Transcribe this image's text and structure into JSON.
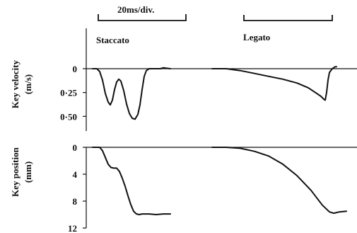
{
  "scale": {
    "label": "20ms/div."
  },
  "conditions": {
    "staccato": "Staccato",
    "legato": "Legato"
  },
  "chart_data": [
    {
      "type": "line",
      "ylabel_line1": "Key velocity",
      "ylabel_line2": "(m/s)",
      "y_ticks": [
        "0",
        "0·25",
        "0·50"
      ],
      "y_tick_values": [
        0,
        0.25,
        0.5
      ],
      "ylim": [
        0,
        0.55
      ],
      "y_inverted": true,
      "series": [
        {
          "points": [
            [
              0,
              0
            ],
            [
              3,
              0
            ],
            [
              5,
              0.03
            ],
            [
              7,
              0.12
            ],
            [
              9,
              0.26
            ],
            [
              11,
              0.35
            ],
            [
              12.5,
              0.38
            ],
            [
              14,
              0.33
            ],
            [
              15.5,
              0.22
            ],
            [
              17,
              0.14
            ],
            [
              18.5,
              0.11
            ],
            [
              20,
              0.13
            ],
            [
              22,
              0.23
            ],
            [
              24,
              0.37
            ],
            [
              26,
              0.47
            ],
            [
              28,
              0.52
            ],
            [
              30,
              0.53
            ],
            [
              32,
              0.48
            ],
            [
              33.5,
              0.38
            ],
            [
              35,
              0.22
            ],
            [
              36.5,
              0.08
            ],
            [
              38,
              0.02
            ],
            [
              40,
              0
            ],
            [
              45,
              0
            ],
            [
              48,
              0
            ],
            [
              50,
              -0.01
            ],
            [
              55,
              0
            ]
          ]
        },
        {
          "points": [
            [
              0,
              0
            ],
            [
              10,
              0
            ],
            [
              20,
              0.02
            ],
            [
              30,
              0.05
            ],
            [
              40,
              0.08
            ],
            [
              50,
              0.11
            ],
            [
              60,
              0.15
            ],
            [
              68,
              0.2
            ],
            [
              73,
              0.25
            ],
            [
              77,
              0.29
            ],
            [
              79,
              0.32
            ],
            [
              80,
              0.33
            ],
            [
              81,
              0.25
            ],
            [
              82,
              0.12
            ],
            [
              83,
              0.04
            ],
            [
              85,
              0
            ],
            [
              87,
              -0.02
            ],
            [
              88,
              -0.02
            ]
          ]
        }
      ]
    },
    {
      "type": "line",
      "ylabel_line1": "Key position",
      "ylabel_line2": "(mm)",
      "y_ticks": [
        "0",
        "4",
        "8",
        "12"
      ],
      "y_tick_values": [
        0,
        4,
        8,
        12
      ],
      "ylim": [
        0,
        12
      ],
      "y_inverted": true,
      "series": [
        {
          "points": [
            [
              0,
              0
            ],
            [
              5,
              0
            ],
            [
              7,
              0.5
            ],
            [
              9,
              1.5
            ],
            [
              11,
              2.5
            ],
            [
              13,
              3.0
            ],
            [
              15,
              3.1
            ],
            [
              17,
              3.1
            ],
            [
              19,
              3.6
            ],
            [
              21,
              4.6
            ],
            [
              23,
              5.8
            ],
            [
              25,
              7.2
            ],
            [
              27,
              8.5
            ],
            [
              29,
              9.5
            ],
            [
              31,
              9.9
            ],
            [
              33,
              10
            ],
            [
              35,
              9.9
            ],
            [
              40,
              9.9
            ],
            [
              45,
              10
            ],
            [
              50,
              9.9
            ],
            [
              55,
              9.9
            ]
          ]
        },
        {
          "points": [
            [
              0,
              0
            ],
            [
              10,
              0
            ],
            [
              20,
              0.15
            ],
            [
              30,
              0.6
            ],
            [
              40,
              1.3
            ],
            [
              50,
              2.5
            ],
            [
              60,
              4.2
            ],
            [
              70,
              6.4
            ],
            [
              78,
              8.6
            ],
            [
              83,
              9.6
            ],
            [
              86,
              9.8
            ],
            [
              90,
              9.6
            ],
            [
              95,
              9.5
            ]
          ]
        }
      ]
    }
  ]
}
